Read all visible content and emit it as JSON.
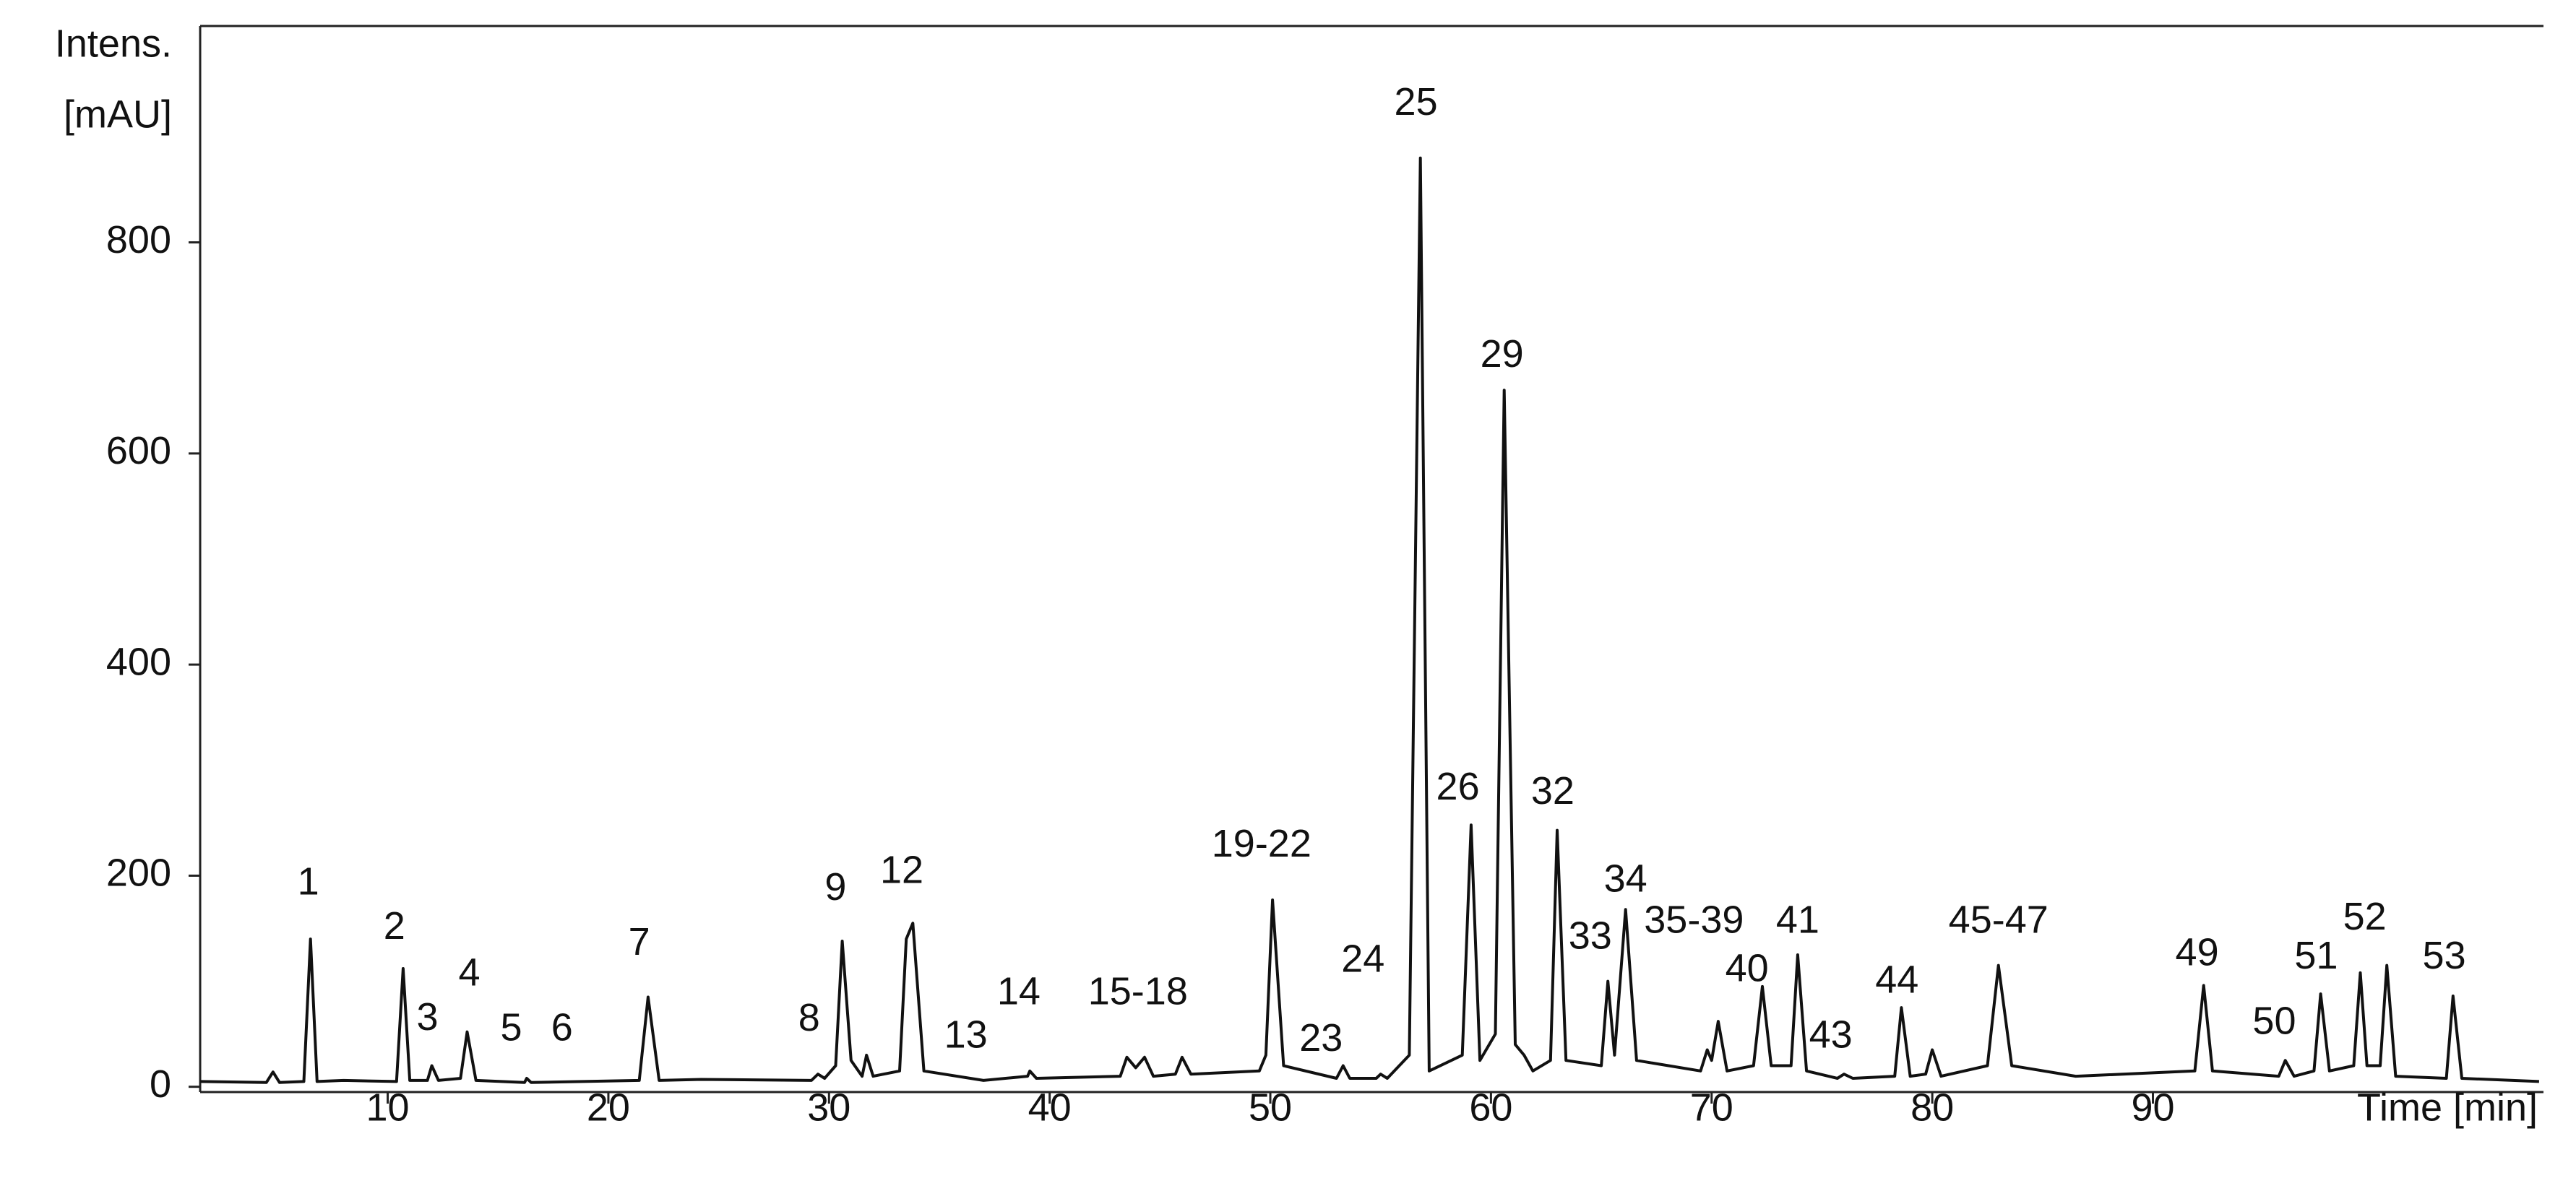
{
  "chart_data": {
    "type": "line",
    "ylabel": [
      "Intens.",
      "[mAU]"
    ],
    "xlabel": "Time [min]",
    "color": "#111111",
    "xlim": [
      1.5,
      107.7
    ],
    "ylim": [
      -5,
      1005
    ],
    "xticks": [
      10,
      20,
      30,
      40,
      50,
      60,
      70,
      80,
      90
    ],
    "yticks": [
      0,
      200,
      400,
      600,
      800
    ],
    "x": [
      1.5,
      4.5,
      4.8,
      5.1,
      6.2,
      6.5,
      6.8,
      8,
      10.4,
      10.7,
      11.0,
      11.8,
      12.0,
      12.3,
      13.3,
      13.6,
      14.0,
      16.2,
      16.3,
      16.5,
      21.4,
      21.8,
      22.3,
      24.2,
      29.2,
      29.5,
      29.8,
      30.3,
      30.6,
      31.0,
      31.5,
      31.7,
      32.0,
      33.2,
      33.5,
      33.8,
      34.3,
      37,
      39.0,
      39.1,
      39.4,
      43.2,
      43.5,
      43.9,
      44.3,
      44.7,
      45.7,
      46.0,
      46.4,
      49.5,
      49.8,
      50.1,
      50.6,
      53.0,
      53.3,
      53.6,
      54.8,
      55.0,
      55.3,
      56.3,
      56.8,
      57.2,
      58.7,
      59.1,
      59.5,
      60.2,
      60.6,
      61.1,
      61.5,
      61.9,
      62.7,
      63.0,
      63.4,
      65.0,
      65.3,
      65.6,
      66.1,
      66.6,
      69.5,
      69.8,
      70.0,
      70.3,
      70.7,
      71.9,
      72.3,
      72.7,
      73.6,
      73.9,
      74.3,
      75.7,
      76.0,
      76.4,
      78.3,
      78.6,
      79.0,
      79.7,
      80.0,
      80.4,
      82.5,
      83.0,
      83.6,
      86.5,
      91.9,
      92.3,
      92.7,
      95.7,
      96.0,
      96.4,
      97.3,
      97.6,
      98.0,
      99.1,
      99.4,
      99.7,
      100.3,
      100.6,
      101.0,
      103.3,
      103.6,
      104.0,
      107.5
    ],
    "values": [
      5,
      4,
      14,
      4,
      5,
      140,
      5,
      6,
      5,
      112,
      6,
      6,
      20,
      6,
      8,
      52,
      6,
      4,
      8,
      4,
      6,
      85,
      6,
      7,
      6,
      12,
      8,
      20,
      138,
      25,
      10,
      30,
      10,
      15,
      140,
      155,
      15,
      6,
      10,
      15,
      8,
      10,
      28,
      18,
      28,
      10,
      12,
      28,
      12,
      15,
      30,
      177,
      20,
      8,
      20,
      8,
      8,
      12,
      8,
      30,
      880,
      15,
      30,
      248,
      25,
      50,
      660,
      40,
      30,
      15,
      25,
      243,
      25,
      20,
      100,
      30,
      168,
      25,
      15,
      35,
      25,
      62,
      15,
      20,
      95,
      20,
      20,
      125,
      15,
      8,
      12,
      8,
      10,
      75,
      10,
      12,
      35,
      10,
      20,
      115,
      20,
      10,
      15,
      96,
      15,
      10,
      25,
      10,
      15,
      88,
      15,
      20,
      108,
      20,
      20,
      115,
      10,
      8,
      86,
      8,
      5
    ],
    "annotations": [
      {
        "text": "1",
        "x": 6.4,
        "y": 182
      },
      {
        "text": "2",
        "x": 10.3,
        "y": 140
      },
      {
        "text": "3",
        "x": 11.8,
        "y": 54
      },
      {
        "text": "4",
        "x": 13.7,
        "y": 96
      },
      {
        "text": "5",
        "x": 15.6,
        "y": 44
      },
      {
        "text": "6",
        "x": 17.9,
        "y": 44
      },
      {
        "text": "7",
        "x": 21.4,
        "y": 125
      },
      {
        "text": "8",
        "x": 29.1,
        "y": 53
      },
      {
        "text": "9",
        "x": 30.3,
        "y": 177
      },
      {
        "text": "12",
        "x": 33.3,
        "y": 193
      },
      {
        "text": "13",
        "x": 36.2,
        "y": 37
      },
      {
        "text": "14",
        "x": 38.6,
        "y": 78
      },
      {
        "text": "15-18",
        "x": 44.0,
        "y": 78
      },
      {
        "text": "19-22",
        "x": 49.6,
        "y": 218
      },
      {
        "text": "23",
        "x": 52.3,
        "y": 34
      },
      {
        "text": "24",
        "x": 54.2,
        "y": 109
      },
      {
        "text": "25",
        "x": 56.6,
        "y": 921
      },
      {
        "text": "26",
        "x": 58.5,
        "y": 272
      },
      {
        "text": "29",
        "x": 60.5,
        "y": 682
      },
      {
        "text": "32",
        "x": 62.8,
        "y": 268
      },
      {
        "text": "33",
        "x": 64.5,
        "y": 131
      },
      {
        "text": "34",
        "x": 66.1,
        "y": 185
      },
      {
        "text": "35-39",
        "x": 69.2,
        "y": 146
      },
      {
        "text": "40",
        "x": 71.6,
        "y": 100
      },
      {
        "text": "41",
        "x": 73.9,
        "y": 146
      },
      {
        "text": "43",
        "x": 75.4,
        "y": 37
      },
      {
        "text": "44",
        "x": 78.4,
        "y": 89
      },
      {
        "text": "45-47",
        "x": 83.0,
        "y": 146
      },
      {
        "text": "49",
        "x": 92.0,
        "y": 115
      },
      {
        "text": "50",
        "x": 95.5,
        "y": 50
      },
      {
        "text": "51",
        "x": 97.4,
        "y": 112
      },
      {
        "text": "52",
        "x": 99.6,
        "y": 149
      },
      {
        "text": "53",
        "x": 103.2,
        "y": 112
      }
    ]
  }
}
